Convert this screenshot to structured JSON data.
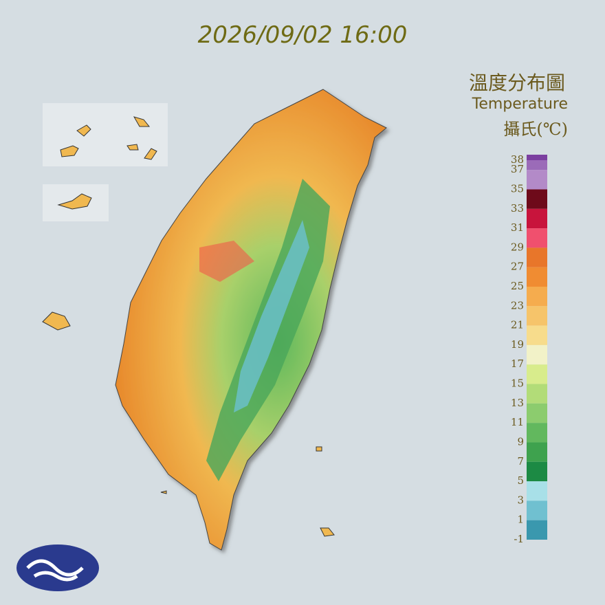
{
  "header": {
    "title": "2026/09/02 16:00"
  },
  "legend": {
    "title": "溫度分布圖",
    "subtitle": "Temperature",
    "unit": "攝氏(℃)",
    "ticks": [
      38,
      37,
      35,
      33,
      31,
      29,
      27,
      25,
      23,
      21,
      19,
      17,
      15,
      13,
      11,
      9,
      7,
      5,
      3,
      1,
      -1
    ],
    "colors": [
      "#7b3fa0",
      "#9b6bb8",
      "#b38ac8",
      "#6e0a1a",
      "#c8143c",
      "#f0506e",
      "#e8762a",
      "#f08c32",
      "#f5ac4e",
      "#f6c46a",
      "#f7dc8c",
      "#f2f2c8",
      "#d8ec8c",
      "#b2dc78",
      "#8ccc6e",
      "#62b85e",
      "#3ea24e",
      "#1c8a44",
      "#a8e0e8",
      "#70c0d0",
      "#3a98ae"
    ]
  }
}
